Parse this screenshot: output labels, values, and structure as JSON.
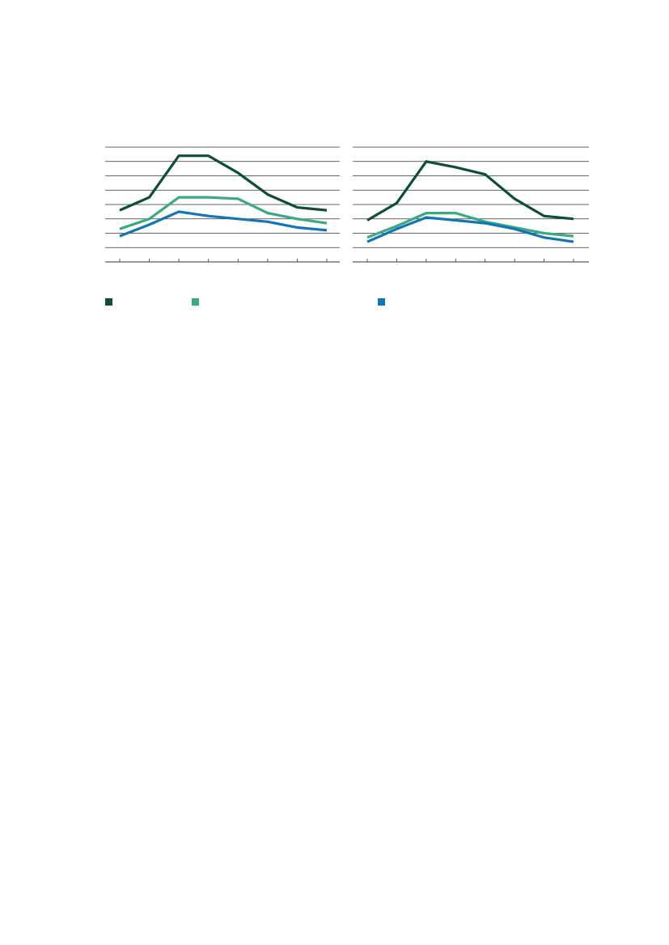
{
  "colors": {
    "series_1": "#0d4f36",
    "series_2": "#3aaa7f",
    "series_3": "#1275b9",
    "grid": "#333333",
    "background": "#ffffff"
  },
  "chart_data": [
    {
      "type": "line",
      "ylim": [
        0,
        8
      ],
      "grid": true,
      "x": [
        1,
        2,
        3,
        4,
        5,
        6,
        7,
        8
      ],
      "series": [
        {
          "values": [
            3.6,
            4.5,
            7.4,
            7.4,
            6.2,
            4.7,
            3.8,
            3.6
          ]
        },
        {
          "values": [
            2.3,
            3.0,
            4.5,
            4.5,
            4.4,
            3.4,
            3.0,
            2.7
          ]
        },
        {
          "values": [
            1.8,
            2.6,
            3.5,
            3.2,
            3.0,
            2.8,
            2.4,
            2.2
          ]
        }
      ]
    },
    {
      "type": "line",
      "ylim": [
        0,
        8
      ],
      "grid": true,
      "x": [
        1,
        2,
        3,
        4,
        5,
        6,
        7,
        8
      ],
      "series": [
        {
          "values": [
            2.9,
            4.1,
            7.0,
            6.6,
            6.1,
            4.4,
            3.2,
            3.0
          ]
        },
        {
          "values": [
            1.7,
            2.5,
            3.4,
            3.4,
            2.8,
            2.4,
            2.0,
            1.8
          ]
        },
        {
          "values": [
            1.4,
            2.3,
            3.1,
            2.9,
            2.7,
            2.3,
            1.7,
            1.4
          ]
        }
      ]
    }
  ],
  "legend": {
    "items": [
      {
        "label": "",
        "color": "#0d4f36"
      },
      {
        "label": "",
        "color": "#3aaa7f"
      },
      {
        "label": "",
        "color": "#1275b9"
      }
    ]
  }
}
